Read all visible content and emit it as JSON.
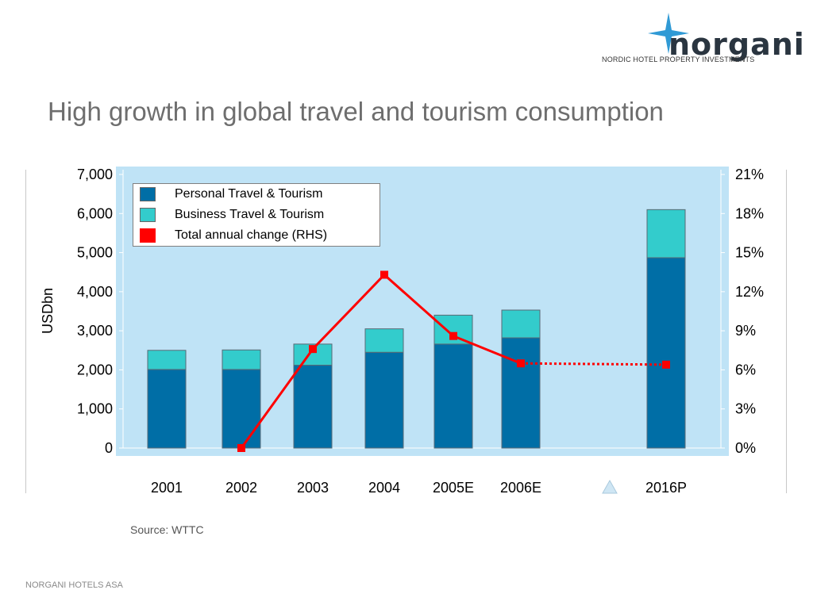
{
  "logo": {
    "name": "norgani",
    "tagline": "NORDIC HOTEL PROPERTY INVESTMENTS"
  },
  "slide_title": "High growth in global travel and tourism consumption",
  "source": "Source: WTTC",
  "footer": "NORGANI HOTELS ASA",
  "colors": {
    "personal": "#006ea6",
    "business": "#33cccc",
    "change": "#ff0000",
    "plot_bg": "#bfe3f6"
  },
  "chart_data": {
    "type": "bar",
    "categories": [
      "2001",
      "2002",
      "2003",
      "2004",
      "2005E",
      "2006E",
      "2016P"
    ],
    "ylabel": "USDbn",
    "ylim": [
      0,
      7000
    ],
    "yticks": [
      "0",
      "1,000",
      "2,000",
      "3,000",
      "4,000",
      "5,000",
      "6,000",
      "7,000"
    ],
    "y2lim": [
      0,
      21
    ],
    "y2ticks": [
      "0%",
      "3%",
      "6%",
      "9%",
      "12%",
      "15%",
      "18%",
      "21%"
    ],
    "series": [
      {
        "name": "Personal Travel & Tourism",
        "type": "stacked-bar",
        "values": [
          2010,
          2010,
          2120,
          2450,
          2660,
          2820,
          4870
        ]
      },
      {
        "name": "Business Travel & Tourism",
        "type": "stacked-bar",
        "values": [
          490,
          500,
          540,
          600,
          740,
          710,
          1230
        ]
      },
      {
        "name": "Total annual change (RHS)",
        "type": "line",
        "axis": "right",
        "values": [
          null,
          0.0,
          7.6,
          13.3,
          8.6,
          6.5,
          6.4
        ],
        "dotted_from_index": 5
      }
    ],
    "grid": false,
    "legend_position": "top-left"
  }
}
